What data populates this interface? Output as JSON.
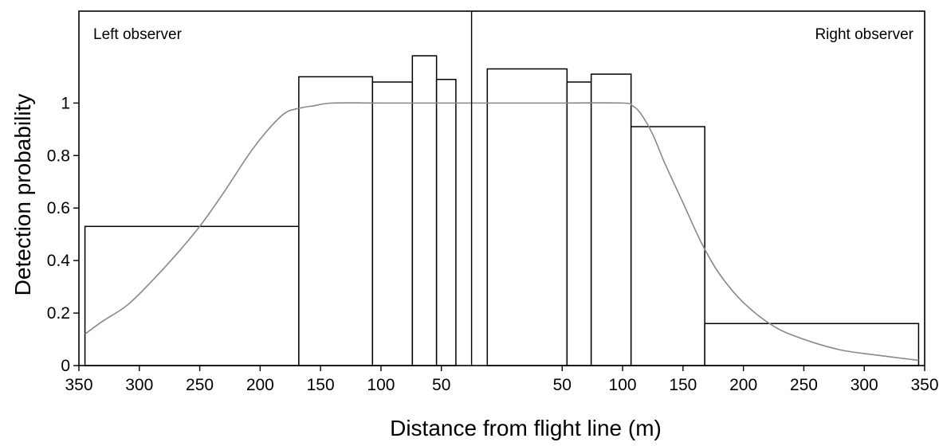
{
  "chart_data": {
    "type": "bar",
    "title": "",
    "xlabel": "Distance from flight line (m)",
    "ylabel": "Detection probability",
    "xlim": [
      -350,
      350
    ],
    "ylim": [
      0,
      1.35
    ],
    "grid": false,
    "center_line_x": -25,
    "annotations": [
      {
        "text": "Left observer",
        "position": "top-left"
      },
      {
        "text": "Right observer",
        "position": "top-right"
      }
    ],
    "x_ticks": [
      {
        "value": -350,
        "label": "350"
      },
      {
        "value": -300,
        "label": "300"
      },
      {
        "value": -250,
        "label": "250"
      },
      {
        "value": -200,
        "label": "200"
      },
      {
        "value": -150,
        "label": "150"
      },
      {
        "value": -100,
        "label": "100"
      },
      {
        "value": -50,
        "label": "50"
      },
      {
        "value": 50,
        "label": "50"
      },
      {
        "value": 100,
        "label": "100"
      },
      {
        "value": 150,
        "label": "150"
      },
      {
        "value": 200,
        "label": "200"
      },
      {
        "value": 250,
        "label": "250"
      },
      {
        "value": 300,
        "label": "300"
      },
      {
        "value": 350,
        "label": "350"
      }
    ],
    "y_ticks": [
      {
        "value": 0,
        "label": "0"
      },
      {
        "value": 0.2,
        "label": "0.2"
      },
      {
        "value": 0.4,
        "label": "0.4"
      },
      {
        "value": 0.6,
        "label": "0.6"
      },
      {
        "value": 0.8,
        "label": "0.8"
      },
      {
        "value": 1,
        "label": "1"
      }
    ],
    "bars": [
      {
        "x0": -345,
        "x1": -168,
        "value": 0.53
      },
      {
        "x0": -168,
        "x1": -107,
        "value": 1.1
      },
      {
        "x0": -107,
        "x1": -74,
        "value": 1.08
      },
      {
        "x0": -74,
        "x1": -54,
        "value": 1.18
      },
      {
        "x0": -54,
        "x1": -38,
        "value": 1.09
      },
      {
        "x0": -12,
        "x1": 54,
        "value": 1.13
      },
      {
        "x0": 54,
        "x1": 74,
        "value": 1.08
      },
      {
        "x0": 74,
        "x1": 107,
        "value": 1.11
      },
      {
        "x0": 107,
        "x1": 168,
        "value": 0.91
      },
      {
        "x0": 168,
        "x1": 345,
        "value": 0.16
      }
    ],
    "detection_curve": {
      "x": [
        -345,
        -330,
        -310,
        -290,
        -270,
        -250,
        -230,
        -210,
        -195,
        -180,
        -168,
        -155,
        -140,
        -100,
        -25,
        50,
        100,
        108,
        115,
        125,
        135,
        150,
        165,
        180,
        200,
        225,
        250,
        280,
        310,
        345
      ],
      "y": [
        0.12,
        0.17,
        0.23,
        0.32,
        0.42,
        0.53,
        0.66,
        0.8,
        0.89,
        0.96,
        0.98,
        0.99,
        1.0,
        1.0,
        1.0,
        1.0,
        1.0,
        0.99,
        0.96,
        0.88,
        0.77,
        0.62,
        0.47,
        0.35,
        0.24,
        0.15,
        0.1,
        0.06,
        0.04,
        0.02
      ]
    }
  }
}
